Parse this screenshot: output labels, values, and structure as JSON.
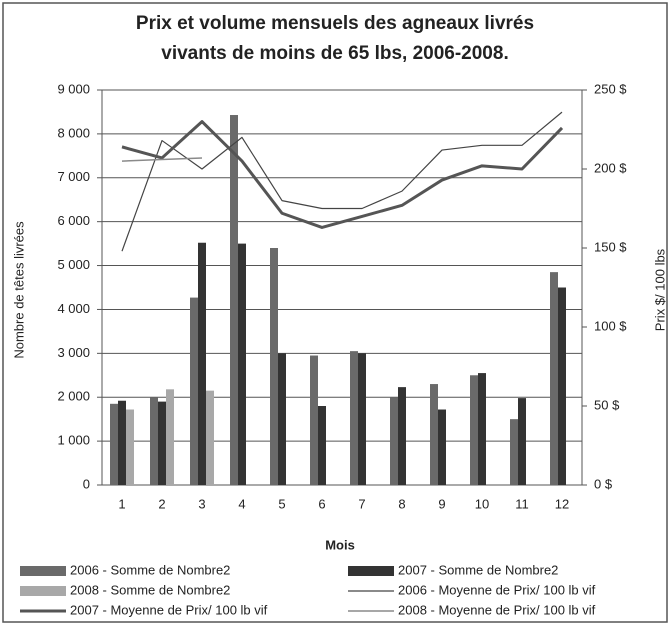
{
  "chart_data": {
    "type": "bar",
    "title": "Prix et volume mensuels des agneaux livrés",
    "subtitle": "vivants de moins de 65 lbs, 2006-2008.",
    "x_label": "Mois",
    "y_label": "Nombre de têtes livrées",
    "y2_label": "Prix $/ 100 lbs",
    "categories": [
      "1",
      "2",
      "3",
      "4",
      "5",
      "6",
      "7",
      "8",
      "9",
      "10",
      "11",
      "12"
    ],
    "ylim": [
      0,
      9000
    ],
    "yticks": [
      0,
      {
        "value": 1000,
        "label": "1 000"
      },
      {
        "value": 2000,
        "label": "2 000"
      },
      {
        "value": 3000,
        "label": "3 000"
      },
      {
        "value": 4000,
        "label": "4 000"
      },
      {
        "value": 5000,
        "label": "5 000"
      },
      {
        "value": 6000,
        "label": "6 000"
      },
      {
        "value": 7000,
        "label": "7 000"
      },
      {
        "value": 8000,
        "label": "8 000"
      },
      {
        "value": 9000,
        "label": "9 000"
      }
    ],
    "y2lim": [
      0,
      250
    ],
    "y2ticks": [
      {
        "value": 0,
        "label": "0 $"
      },
      {
        "value": 50,
        "label": "50 $"
      },
      {
        "value": 100,
        "label": "100 $"
      },
      {
        "value": 150,
        "label": "150 $"
      },
      {
        "value": 200,
        "label": "200 $"
      },
      {
        "value": 250,
        "label": "250 $"
      }
    ],
    "grid": true,
    "series": [
      {
        "name": "2006 - Somme de Nombre2",
        "type": "bar",
        "color": "#6a6a6a",
        "values": [
          1850,
          2000,
          4270,
          8430,
          5400,
          2950,
          3050,
          2000,
          2300,
          2500,
          1500,
          4850
        ]
      },
      {
        "name": "2007 - Somme de Nombre2",
        "type": "bar",
        "color": "#333333",
        "values": [
          1920,
          1900,
          5520,
          5500,
          3000,
          1800,
          3000,
          2230,
          1720,
          2550,
          1980,
          4500
        ]
      },
      {
        "name": "2008 - Somme de Nombre2",
        "type": "bar",
        "color": "#a8a8a8",
        "values": [
          1720,
          2180,
          2150,
          null,
          null,
          null,
          null,
          null,
          null,
          null,
          null,
          null
        ]
      },
      {
        "name": "2006 - Moyenne de Prix/ 100 lb vif",
        "type": "line",
        "axis": "y2",
        "color": "#444444",
        "width": 1.2,
        "values": [
          148,
          218,
          200,
          220,
          180,
          175,
          175,
          186,
          212,
          215,
          215,
          236
        ]
      },
      {
        "name": "2007 - Moyenne de Prix/ 100 lb vif",
        "type": "line",
        "axis": "y2",
        "color": "#555555",
        "width": 3,
        "values": [
          214,
          207,
          230,
          205,
          172,
          163,
          170,
          177,
          193,
          202,
          200,
          226
        ]
      },
      {
        "name": "2008 - Moyenne de Prix/ 100 lb vif",
        "type": "line",
        "axis": "y2",
        "color": "#8a8a8a",
        "width": 1.5,
        "values": [
          205,
          206,
          207,
          null,
          null,
          null,
          null,
          null,
          null,
          null,
          null,
          null
        ]
      }
    ]
  }
}
